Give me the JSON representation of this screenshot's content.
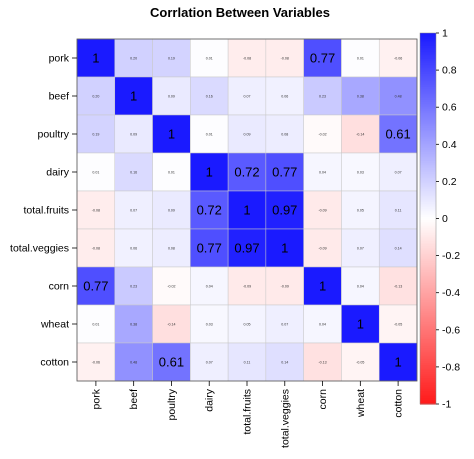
{
  "chart_data": {
    "type": "heatmap",
    "title": "Corrlation Between Variables",
    "variables": [
      "pork",
      "beef",
      "poultry",
      "dairy",
      "total.fruits",
      "total.veggies",
      "corn",
      "wheat",
      "cotton"
    ],
    "matrix": [
      [
        1,
        0.2,
        0.19,
        0.01,
        -0.08,
        -0.08,
        0.77,
        0.01,
        -0.06
      ],
      [
        0.2,
        1,
        0.09,
        0.16,
        0.07,
        0.06,
        0.23,
        0.38,
        0.48
      ],
      [
        0.19,
        0.09,
        1,
        0.01,
        0.09,
        0.08,
        -0.02,
        -0.14,
        0.61
      ],
      [
        0.01,
        0.16,
        0.01,
        1,
        0.72,
        0.77,
        0.04,
        0.03,
        0.07
      ],
      [
        -0.08,
        0.07,
        0.09,
        0.72,
        1,
        0.97,
        -0.09,
        0.05,
        0.11
      ],
      [
        -0.08,
        0.06,
        0.08,
        0.77,
        0.97,
        1,
        -0.09,
        0.07,
        0.14
      ],
      [
        0.77,
        0.23,
        -0.02,
        0.04,
        -0.09,
        -0.09,
        1,
        0.04,
        -0.13
      ],
      [
        0.01,
        0.38,
        -0.14,
        0.03,
        0.05,
        0.07,
        0.04,
        1,
        -0.05
      ],
      [
        -0.06,
        0.48,
        0.61,
        0.07,
        0.11,
        0.14,
        -0.13,
        -0.05,
        1
      ]
    ],
    "large_label_threshold": 0.6,
    "colorbar": {
      "min": -1,
      "max": 1,
      "ticks": [
        "1",
        "0.8",
        "0.6",
        "0.4",
        "0.2",
        "0",
        "-0.2",
        "-0.4",
        "-0.6",
        "-0.8",
        "-1"
      ],
      "color_positive": "#1a1aff",
      "color_zero": "#ffffff",
      "color_negative": "#ff1a1a"
    }
  }
}
